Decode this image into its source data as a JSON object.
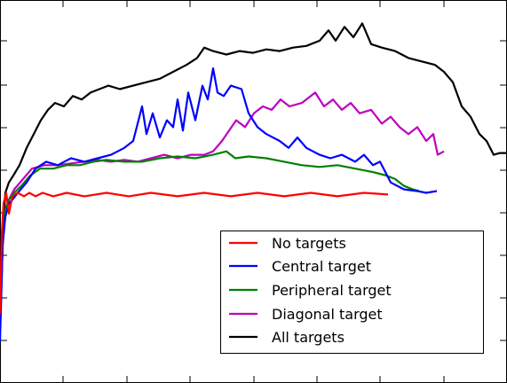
{
  "chart_data": {
    "type": "line",
    "title": "",
    "xlabel": "",
    "ylabel": "",
    "xlim": [
      0,
      570
    ],
    "ylim": [
      0,
      1
    ],
    "grid": false,
    "legend_position": "lower-right",
    "series": [
      {
        "name": "No targets",
        "color": "#ff0000",
        "points": [
          [
            0,
            0.2
          ],
          [
            2,
            0.43
          ],
          [
            4,
            0.52
          ],
          [
            7,
            0.55
          ],
          [
            10,
            0.49
          ],
          [
            14,
            0.54
          ],
          [
            20,
            0.55
          ],
          [
            27,
            0.54
          ],
          [
            33,
            0.55
          ],
          [
            40,
            0.54
          ],
          [
            48,
            0.55
          ],
          [
            60,
            0.54
          ],
          [
            75,
            0.55
          ],
          [
            95,
            0.54
          ],
          [
            120,
            0.55
          ],
          [
            145,
            0.54
          ],
          [
            170,
            0.55
          ],
          [
            200,
            0.54
          ],
          [
            230,
            0.55
          ],
          [
            260,
            0.54
          ],
          [
            290,
            0.55
          ],
          [
            320,
            0.54
          ],
          [
            350,
            0.55
          ],
          [
            380,
            0.54
          ],
          [
            410,
            0.55
          ],
          [
            437,
            0.545
          ]
        ]
      },
      {
        "name": "Central target",
        "color": "#0000ff",
        "points": [
          [
            0,
            0.12
          ],
          [
            3,
            0.4
          ],
          [
            6,
            0.48
          ],
          [
            10,
            0.52
          ],
          [
            14,
            0.53
          ],
          [
            20,
            0.55
          ],
          [
            30,
            0.58
          ],
          [
            40,
            0.62
          ],
          [
            52,
            0.64
          ],
          [
            65,
            0.63
          ],
          [
            80,
            0.65
          ],
          [
            95,
            0.64
          ],
          [
            110,
            0.65
          ],
          [
            125,
            0.66
          ],
          [
            140,
            0.68
          ],
          [
            150,
            0.7
          ],
          [
            160,
            0.8
          ],
          [
            165,
            0.72
          ],
          [
            172,
            0.78
          ],
          [
            180,
            0.71
          ],
          [
            188,
            0.76
          ],
          [
            195,
            0.74
          ],
          [
            200,
            0.82
          ],
          [
            206,
            0.73
          ],
          [
            212,
            0.84
          ],
          [
            220,
            0.76
          ],
          [
            228,
            0.86
          ],
          [
            234,
            0.82
          ],
          [
            240,
            0.91
          ],
          [
            245,
            0.84
          ],
          [
            252,
            0.83
          ],
          [
            260,
            0.86
          ],
          [
            272,
            0.85
          ],
          [
            280,
            0.78
          ],
          [
            290,
            0.74
          ],
          [
            300,
            0.72
          ],
          [
            315,
            0.7
          ],
          [
            325,
            0.68
          ],
          [
            335,
            0.71
          ],
          [
            345,
            0.68
          ],
          [
            360,
            0.66
          ],
          [
            372,
            0.65
          ],
          [
            385,
            0.66
          ],
          [
            400,
            0.64
          ],
          [
            410,
            0.66
          ],
          [
            420,
            0.63
          ],
          [
            428,
            0.64
          ],
          [
            440,
            0.58
          ],
          [
            455,
            0.56
          ],
          [
            470,
            0.555
          ],
          [
            480,
            0.55
          ],
          [
            492,
            0.555
          ]
        ]
      },
      {
        "name": "Peripheral target",
        "color": "#008000",
        "points": [
          [
            0,
            0.15
          ],
          [
            3,
            0.4
          ],
          [
            6,
            0.5
          ],
          [
            10,
            0.53
          ],
          [
            16,
            0.55
          ],
          [
            24,
            0.57
          ],
          [
            34,
            0.6
          ],
          [
            45,
            0.62
          ],
          [
            60,
            0.62
          ],
          [
            75,
            0.63
          ],
          [
            90,
            0.63
          ],
          [
            105,
            0.64
          ],
          [
            120,
            0.645
          ],
          [
            140,
            0.64
          ],
          [
            160,
            0.64
          ],
          [
            180,
            0.65
          ],
          [
            200,
            0.655
          ],
          [
            220,
            0.65
          ],
          [
            240,
            0.66
          ],
          [
            255,
            0.67
          ],
          [
            265,
            0.65
          ],
          [
            280,
            0.655
          ],
          [
            300,
            0.65
          ],
          [
            320,
            0.64
          ],
          [
            340,
            0.63
          ],
          [
            360,
            0.625
          ],
          [
            380,
            0.63
          ],
          [
            400,
            0.62
          ],
          [
            420,
            0.61
          ],
          [
            435,
            0.6
          ],
          [
            445,
            0.59
          ],
          [
            455,
            0.57
          ],
          [
            465,
            0.56
          ],
          [
            472,
            0.555
          ]
        ]
      },
      {
        "name": "Diagonal target",
        "color": "#bf00bf",
        "points": [
          [
            0,
            0.18
          ],
          [
            3,
            0.4
          ],
          [
            6,
            0.5
          ],
          [
            10,
            0.53
          ],
          [
            16,
            0.56
          ],
          [
            26,
            0.59
          ],
          [
            36,
            0.62
          ],
          [
            50,
            0.63
          ],
          [
            65,
            0.63
          ],
          [
            80,
            0.635
          ],
          [
            95,
            0.64
          ],
          [
            110,
            0.645
          ],
          [
            125,
            0.64
          ],
          [
            140,
            0.645
          ],
          [
            155,
            0.64
          ],
          [
            170,
            0.65
          ],
          [
            185,
            0.66
          ],
          [
            200,
            0.65
          ],
          [
            215,
            0.66
          ],
          [
            230,
            0.66
          ],
          [
            240,
            0.67
          ],
          [
            250,
            0.7
          ],
          [
            258,
            0.73
          ],
          [
            266,
            0.76
          ],
          [
            276,
            0.74
          ],
          [
            286,
            0.78
          ],
          [
            296,
            0.8
          ],
          [
            306,
            0.79
          ],
          [
            316,
            0.82
          ],
          [
            326,
            0.8
          ],
          [
            340,
            0.81
          ],
          [
            355,
            0.84
          ],
          [
            365,
            0.8
          ],
          [
            375,
            0.82
          ],
          [
            385,
            0.79
          ],
          [
            395,
            0.81
          ],
          [
            405,
            0.78
          ],
          [
            418,
            0.79
          ],
          [
            430,
            0.75
          ],
          [
            440,
            0.77
          ],
          [
            450,
            0.74
          ],
          [
            460,
            0.72
          ],
          [
            470,
            0.74
          ],
          [
            480,
            0.7
          ],
          [
            488,
            0.72
          ],
          [
            493,
            0.66
          ],
          [
            500,
            0.67
          ]
        ]
      },
      {
        "name": "All targets",
        "color": "#000000",
        "points": [
          [
            0,
            0.22
          ],
          [
            3,
            0.42
          ],
          [
            6,
            0.55
          ],
          [
            10,
            0.58
          ],
          [
            15,
            0.6
          ],
          [
            22,
            0.63
          ],
          [
            30,
            0.68
          ],
          [
            38,
            0.72
          ],
          [
            46,
            0.76
          ],
          [
            54,
            0.79
          ],
          [
            62,
            0.81
          ],
          [
            72,
            0.8
          ],
          [
            82,
            0.83
          ],
          [
            92,
            0.82
          ],
          [
            102,
            0.84
          ],
          [
            112,
            0.85
          ],
          [
            122,
            0.86
          ],
          [
            135,
            0.85
          ],
          [
            150,
            0.86
          ],
          [
            165,
            0.87
          ],
          [
            180,
            0.88
          ],
          [
            195,
            0.9
          ],
          [
            210,
            0.92
          ],
          [
            222,
            0.94
          ],
          [
            230,
            0.97
          ],
          [
            240,
            0.96
          ],
          [
            255,
            0.95
          ],
          [
            270,
            0.96
          ],
          [
            285,
            0.955
          ],
          [
            300,
            0.965
          ],
          [
            315,
            0.96
          ],
          [
            330,
            0.97
          ],
          [
            345,
            0.975
          ],
          [
            360,
            0.99
          ],
          [
            370,
            1.02
          ],
          [
            378,
            0.99
          ],
          [
            388,
            1.03
          ],
          [
            398,
            1.0
          ],
          [
            408,
            1.04
          ],
          [
            418,
            0.98
          ],
          [
            430,
            0.97
          ],
          [
            445,
            0.96
          ],
          [
            460,
            0.94
          ],
          [
            475,
            0.93
          ],
          [
            490,
            0.92
          ],
          [
            500,
            0.9
          ],
          [
            510,
            0.87
          ],
          [
            520,
            0.8
          ],
          [
            530,
            0.77
          ],
          [
            540,
            0.72
          ],
          [
            548,
            0.7
          ],
          [
            556,
            0.66
          ],
          [
            563,
            0.665
          ],
          [
            570,
            0.665
          ]
        ]
      }
    ]
  }
}
